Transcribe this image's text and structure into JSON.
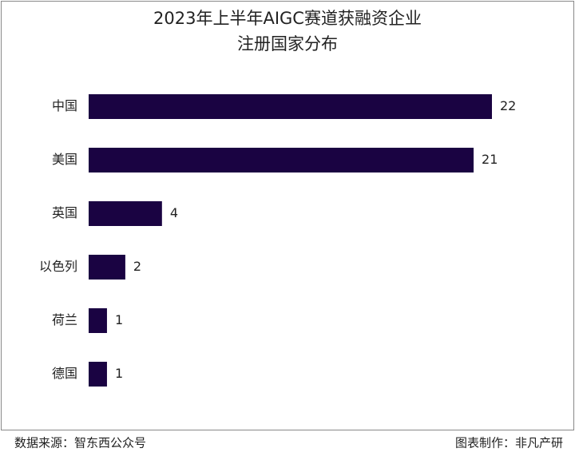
{
  "chart_data": {
    "type": "bar",
    "orientation": "horizontal",
    "title": [
      "2023年上半年AIGC赛道获融资企业",
      "注册国家分布"
    ],
    "categories": [
      "中国",
      "美国",
      "英国",
      "以色列",
      "荷兰",
      "德国"
    ],
    "values": [
      22,
      21,
      4,
      2,
      1,
      1
    ],
    "color": "#1a0342"
  },
  "footer": {
    "source": "数据来源：智东西公众号",
    "credit": "图表制作：非凡产研"
  }
}
